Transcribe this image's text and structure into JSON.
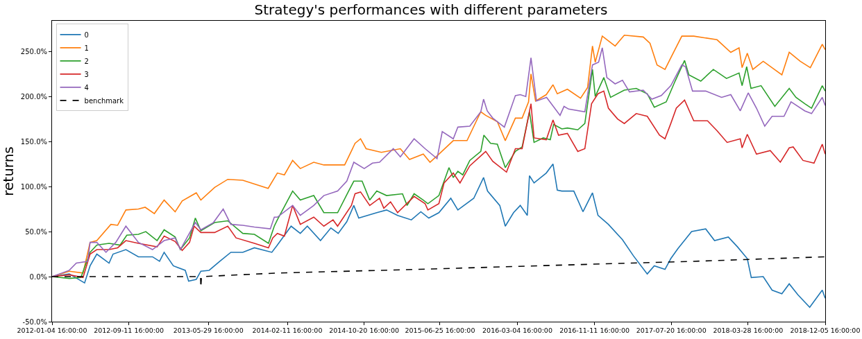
{
  "chart_data": {
    "type": "line",
    "title": "Strategy's performances with different parameters",
    "ylabel": "returns",
    "legend": "top left",
    "xlim": [
      "2012-01-04T16:00",
      "2018-12-05T16:00"
    ],
    "ylim": [
      -50,
      284
    ],
    "xticks": [
      {
        "value": "2012-01-04T16:00",
        "label": "2012-01-04 16:00:00"
      },
      {
        "value": "2012-09-11T16:00",
        "label": "2012-09-11 16:00:00"
      },
      {
        "value": "2013-05-29T16:00",
        "label": "2013-05-29 16:00:00"
      },
      {
        "value": "2014-02-11T16:00",
        "label": "2014-02-11 16:00:00"
      },
      {
        "value": "2014-10-20T16:00",
        "label": "2014-10-20 16:00:00"
      },
      {
        "value": "2015-06-25T16:00",
        "label": "2015-06-25 16:00:00"
      },
      {
        "value": "2016-03-04T16:00",
        "label": "2016-03-04 16:00:00"
      },
      {
        "value": "2016-11-11T16:00",
        "label": "2016-11-11 16:00:00"
      },
      {
        "value": "2017-07-20T16:00",
        "label": "2017-07-20 16:00:00"
      },
      {
        "value": "2018-03-28T16:00",
        "label": "2018-03-28 16:00:00"
      },
      {
        "value": "2018-12-05T16:00",
        "label": "2018-12-05 16:00:00"
      }
    ],
    "yticks": [
      {
        "value": -50,
        "label": "-50.0%"
      },
      {
        "value": 0,
        "label": "0.0%"
      },
      {
        "value": 50,
        "label": "50.0%"
      },
      {
        "value": 100,
        "label": "100.0%"
      },
      {
        "value": 150,
        "label": "150.0%"
      },
      {
        "value": 200,
        "label": "200.0%"
      },
      {
        "value": 250,
        "label": "250.0%"
      }
    ],
    "series": [
      {
        "name": "0",
        "color": "#1f77b4",
        "x": [
          "2012-01-04T16:00",
          "2012-03-01",
          "2012-04-20",
          "2012-05-08",
          "2012-05-30",
          "2012-07-09",
          "2012-07-22",
          "2012-09-02",
          "2012-10-13",
          "2012-11-28",
          "2012-12-21",
          "2013-01-05",
          "2013-02-04",
          "2013-03-15",
          "2013-03-26",
          "2013-04-20",
          "2013-05-05",
          "2013-06-01",
          "2013-07-06",
          "2013-08-11",
          "2013-09-19",
          "2013-10-27",
          "2013-12-23",
          "2014-01-10",
          "2014-02-24",
          "2014-03-26",
          "2014-04-18",
          "2014-05-31",
          "2014-07-04",
          "2014-07-28",
          "2014-08-25",
          "2014-09-17",
          "2014-10-03",
          "2014-12-01",
          "2015-01-02",
          "2015-02-07",
          "2015-03-24",
          "2015-04-24",
          "2015-05-20",
          "2015-06-22",
          "2015-07-31",
          "2015-08-23",
          "2015-10-14",
          "2015-11-15",
          "2015-11-28",
          "2016-01-07",
          "2016-01-25",
          "2016-02-21",
          "2016-03-14",
          "2016-04-06",
          "2016-04-13",
          "2016-04-28",
          "2016-06-07",
          "2016-06-29",
          "2016-07-13",
          "2016-07-28",
          "2016-09-05",
          "2016-10-05",
          "2016-11-05",
          "2016-11-23",
          "2016-12-27",
          "2017-02-11",
          "2017-03-19",
          "2017-05-03",
          "2017-05-26",
          "2017-06-30",
          "2017-07-19",
          "2017-08-11",
          "2017-09-25",
          "2017-11-10",
          "2017-12-09",
          "2018-01-23",
          "2018-02-22",
          "2018-03-26",
          "2018-04-08",
          "2018-05-17",
          "2018-06-15",
          "2018-07-17",
          "2018-08-10",
          "2018-09-07",
          "2018-10-16",
          "2018-11-26",
          "2018-12-05T16:00"
        ],
        "values": [
          0,
          3,
          -7,
          12,
          25,
          15,
          25,
          30,
          22,
          22,
          17,
          27,
          12,
          7,
          -5,
          -3,
          6,
          7,
          17,
          27,
          27,
          32,
          27,
          35,
          56,
          48,
          56,
          40,
          54,
          48,
          61,
          79,
          65,
          71,
          74,
          68,
          63,
          72,
          65,
          71,
          87,
          74,
          87,
          110,
          95,
          79,
          56,
          71,
          79,
          68,
          112,
          104,
          115,
          125,
          96,
          95,
          95,
          72,
          93,
          68,
          58,
          41,
          23,
          3,
          12,
          8,
          20,
          31,
          50,
          53,
          40,
          44,
          33,
          20,
          -1,
          0,
          -15,
          -19,
          -8,
          -20,
          -34,
          -15,
          -24
        ]
      },
      {
        "name": "1",
        "color": "#ff7f0e",
        "x": [
          "2012-01-04T16:00",
          "2012-03-01",
          "2012-04-15",
          "2012-05-08",
          "2012-05-30",
          "2012-07-15",
          "2012-08-06",
          "2012-09-02",
          "2012-10-13",
          "2012-11-04",
          "2012-12-04",
          "2013-01-05",
          "2013-02-10",
          "2013-03-05",
          "2013-04-20",
          "2013-05-05",
          "2013-06-19",
          "2013-08-01",
          "2013-09-19",
          "2013-12-11",
          "2014-01-10",
          "2014-02-02",
          "2014-03-01",
          "2014-03-26",
          "2014-05-09",
          "2014-06-11",
          "2014-08-18",
          "2014-08-31",
          "2014-09-21",
          "2014-10-09",
          "2014-10-27",
          "2014-12-16",
          "2015-02-16",
          "2015-03-18",
          "2015-05-02",
          "2015-05-24",
          "2015-06-22",
          "2015-08-08",
          "2015-09-22",
          "2015-11-06",
          "2015-11-22",
          "2015-12-30",
          "2016-01-25",
          "2016-02-27",
          "2016-03-20",
          "2016-04-10",
          "2016-04-18",
          "2016-05-03",
          "2016-06-07",
          "2016-06-29",
          "2016-07-13",
          "2016-08-15",
          "2016-09-27",
          "2016-10-20",
          "2016-11-05",
          "2016-11-14",
          "2016-12-07",
          "2017-01-18",
          "2017-02-17",
          "2017-04-20",
          "2017-05-12",
          "2017-06-04",
          "2017-06-30",
          "2017-07-19",
          "2017-08-24",
          "2017-10-02",
          "2017-12-17",
          "2018-01-31",
          "2018-02-27",
          "2018-03-09",
          "2018-03-26",
          "2018-04-13",
          "2018-05-17",
          "2018-07-17",
          "2018-08-10",
          "2018-09-15",
          "2018-10-18",
          "2018-11-26",
          "2018-12-05T16:00"
        ],
        "values": [
          0,
          6,
          4,
          38,
          40,
          58,
          57,
          74,
          75,
          77,
          70,
          85,
          72,
          84,
          93,
          85,
          99,
          108,
          107,
          98,
          115,
          113,
          129,
          120,
          127,
          124,
          124,
          133,
          148,
          153,
          142,
          138,
          142,
          130,
          136,
          127,
          136,
          151,
          151,
          183,
          179,
          172,
          151,
          176,
          176,
          194,
          225,
          195,
          202,
          213,
          203,
          208,
          198,
          210,
          256,
          238,
          267,
          256,
          268,
          266,
          259,
          235,
          230,
          243,
          267,
          267,
          263,
          249,
          254,
          232,
          248,
          230,
          239,
          224,
          249,
          239,
          232,
          258,
          252
        ]
      },
      {
        "name": "2",
        "color": "#2ca02c",
        "x": [
          "2012-01-04T16:00",
          "2012-03-01",
          "2012-04-08",
          "2012-05-08",
          "2012-05-30",
          "2012-07-09",
          "2012-08-14",
          "2012-09-05",
          "2012-10-13",
          "2012-11-06",
          "2012-12-13",
          "2013-01-05",
          "2013-02-10",
          "2013-02-27",
          "2013-03-29",
          "2013-04-17",
          "2013-05-05",
          "2013-06-19",
          "2013-08-01",
          "2013-09-19",
          "2013-10-27",
          "2013-12-12",
          "2013-12-31",
          "2014-01-10",
          "2014-03-01",
          "2014-03-26",
          "2014-05-09",
          "2014-06-11",
          "2014-07-26",
          "2014-08-31",
          "2014-09-17",
          "2014-10-14",
          "2014-11-08",
          "2014-12-01",
          "2015-01-02",
          "2015-02-23",
          "2015-03-10",
          "2015-04-02",
          "2015-05-02",
          "2015-05-17",
          "2015-06-22",
          "2015-07-25",
          "2015-08-08",
          "2015-08-23",
          "2015-09-08",
          "2015-10-01",
          "2015-11-06",
          "2015-11-16",
          "2015-12-08",
          "2015-12-30",
          "2016-01-25",
          "2016-02-27",
          "2016-03-20",
          "2016-04-13",
          "2016-04-28",
          "2016-05-28",
          "2016-06-20",
          "2016-07-01",
          "2016-07-28",
          "2016-08-15",
          "2016-09-18",
          "2016-10-11",
          "2016-11-05",
          "2016-11-14",
          "2016-12-12",
          "2017-01-03",
          "2017-02-17",
          "2017-03-28",
          "2017-05-03",
          "2017-05-26",
          "2017-07-04",
          "2017-08-02",
          "2017-09-02",
          "2017-09-16",
          "2017-10-25",
          "2017-12-05",
          "2018-01-17",
          "2018-02-27",
          "2018-03-09",
          "2018-03-24",
          "2018-04-07",
          "2018-05-10",
          "2018-06-24",
          "2018-08-10",
          "2018-09-01",
          "2018-09-30",
          "2018-10-22",
          "2018-11-26",
          "2018-12-05T16:00"
        ],
        "values": [
          0,
          -2,
          -1,
          27,
          35,
          37,
          35,
          46,
          47,
          50,
          40,
          52,
          44,
          30,
          43,
          65,
          51,
          60,
          62,
          48,
          47,
          37,
          56,
          63,
          95,
          85,
          90,
          71,
          71,
          95,
          106,
          106,
          85,
          95,
          90,
          92,
          79,
          92,
          85,
          81,
          90,
          121,
          110,
          117,
          113,
          129,
          139,
          157,
          148,
          147,
          121,
          139,
          144,
          183,
          149,
          154,
          152,
          169,
          164,
          165,
          163,
          170,
          230,
          200,
          221,
          199,
          207,
          209,
          203,
          188,
          194,
          217,
          240,
          224,
          217,
          230,
          220,
          226,
          212,
          233,
          209,
          212,
          189,
          209,
          199,
          192,
          187,
          212,
          206
        ]
      },
      {
        "name": "3",
        "color": "#d62728",
        "x": [
          "2012-01-04T16:00",
          "2012-03-01",
          "2012-04-15",
          "2012-05-08",
          "2012-05-30",
          "2012-07-09",
          "2012-08-06",
          "2012-09-02",
          "2012-10-13",
          "2012-12-13",
          "2013-01-05",
          "2013-02-10",
          "2013-03-05",
          "2013-03-29",
          "2013-04-13",
          "2013-05-05",
          "2013-06-19",
          "2013-08-01",
          "2013-08-28",
          "2013-10-27",
          "2013-12-12",
          "2013-12-26",
          "2014-01-10",
          "2014-02-02",
          "2014-03-01",
          "2014-03-26",
          "2014-05-09",
          "2014-06-11",
          "2014-07-11",
          "2014-07-26",
          "2014-09-09",
          "2014-09-21",
          "2014-10-09",
          "2014-11-08",
          "2014-12-10",
          "2014-12-24",
          "2015-01-15",
          "2015-02-07",
          "2015-04-02",
          "2015-05-08",
          "2015-05-17",
          "2015-06-22",
          "2015-07-09",
          "2015-08-08",
          "2015-08-30",
          "2015-10-01",
          "2015-11-06",
          "2015-11-22",
          "2015-12-15",
          "2016-01-29",
          "2016-02-27",
          "2016-03-20",
          "2016-04-18",
          "2016-04-28",
          "2016-06-07",
          "2016-06-29",
          "2016-07-17",
          "2016-08-15",
          "2016-09-18",
          "2016-10-11",
          "2016-11-02",
          "2016-11-23",
          "2016-12-12",
          "2016-12-27",
          "2017-01-26",
          "2017-02-17",
          "2017-03-28",
          "2017-05-03",
          "2017-06-12",
          "2017-06-30",
          "2017-07-19",
          "2017-08-06",
          "2017-09-02",
          "2017-10-02",
          "2017-11-16",
          "2017-12-17",
          "2018-01-19",
          "2018-03-03",
          "2018-03-09",
          "2018-03-26",
          "2018-04-25",
          "2018-06-09",
          "2018-07-12",
          "2018-08-10",
          "2018-08-23",
          "2018-09-24",
          "2018-10-30",
          "2018-11-26",
          "2018-12-05T16:00"
        ],
        "values": [
          0,
          2,
          -1,
          25,
          30,
          30,
          32,
          40,
          37,
          33,
          45,
          39,
          29,
          38,
          56,
          49,
          49,
          56,
          43,
          37,
          32,
          43,
          48,
          45,
          79,
          58,
          66,
          56,
          63,
          56,
          79,
          92,
          94,
          79,
          87,
          76,
          83,
          71,
          89,
          81,
          74,
          81,
          104,
          115,
          104,
          123,
          134,
          139,
          128,
          116,
          142,
          142,
          192,
          154,
          152,
          174,
          157,
          159,
          139,
          142,
          192,
          203,
          206,
          187,
          175,
          170,
          181,
          178,
          157,
          153,
          170,
          187,
          196,
          173,
          173,
          162,
          149,
          153,
          143,
          158,
          136,
          140,
          127,
          143,
          144,
          129,
          126,
          147,
          136
        ]
      },
      {
        "name": "4",
        "color": "#9467bd",
        "x": [
          "2012-01-04T16:00",
          "2012-03-01",
          "2012-03-24",
          "2012-04-30",
          "2012-05-08",
          "2012-05-30",
          "2012-06-29",
          "2012-07-31",
          "2012-09-02",
          "2012-10-13",
          "2012-11-28",
          "2013-01-05",
          "2013-02-10",
          "2013-02-27",
          "2013-04-17",
          "2013-05-05",
          "2013-06-15",
          "2013-07-17",
          "2013-08-11",
          "2013-09-19",
          "2013-10-27",
          "2013-12-18",
          "2013-12-31",
          "2014-01-10",
          "2014-03-01",
          "2014-03-26",
          "2014-05-09",
          "2014-06-11",
          "2014-07-26",
          "2014-08-25",
          "2014-09-17",
          "2014-10-21",
          "2014-11-17",
          "2014-12-10",
          "2015-01-24",
          "2015-02-16",
          "2015-04-02",
          "2015-05-08",
          "2015-06-16",
          "2015-07-03",
          "2015-08-08",
          "2015-08-23",
          "2015-10-01",
          "2015-11-06",
          "2015-11-15",
          "2015-11-27",
          "2015-12-15",
          "2016-01-22",
          "2016-02-27",
          "2016-03-14",
          "2016-04-01",
          "2016-04-18",
          "2016-05-06",
          "2016-06-08",
          "2016-07-22",
          "2016-08-04",
          "2016-08-19",
          "2016-10-11",
          "2016-11-05",
          "2016-11-25",
          "2016-12-07",
          "2016-12-22",
          "2017-01-18",
          "2017-02-11",
          "2017-03-06",
          "2017-04-20",
          "2017-05-18",
          "2017-06-18",
          "2017-07-19",
          "2017-08-24",
          "2017-09-05",
          "2017-09-28",
          "2017-11-10",
          "2018-01-01",
          "2018-01-31",
          "2018-03-03",
          "2018-03-29",
          "2018-04-25",
          "2018-05-22",
          "2018-06-15",
          "2018-07-24",
          "2018-08-16",
          "2018-09-30",
          "2018-10-22",
          "2018-11-26",
          "2018-12-05T16:00"
        ],
        "values": [
          0,
          7,
          15,
          17,
          38,
          38,
          27,
          38,
          56,
          38,
          30,
          40,
          43,
          30,
          60,
          52,
          60,
          75,
          58,
          57,
          55,
          53,
          66,
          66,
          79,
          68,
          79,
          90,
          95,
          106,
          127,
          120,
          126,
          127,
          142,
          133,
          153,
          142,
          131,
          161,
          153,
          166,
          167,
          183,
          197,
          184,
          176,
          166,
          201,
          202,
          200,
          243,
          195,
          199,
          179,
          189,
          186,
          183,
          235,
          238,
          254,
          221,
          214,
          218,
          205,
          207,
          197,
          201,
          212,
          235,
          233,
          206,
          206,
          199,
          202,
          184,
          204,
          187,
          167,
          178,
          178,
          194,
          184,
          181,
          199,
          190
        ]
      },
      {
        "name": "benchmark",
        "color": "#000000",
        "line_style": "dashed",
        "x": [
          "2012-01-04T16:00",
          "2013-05-04",
          "2013-05-05",
          "2013-05-07",
          "2014-01-10",
          "2015-04-09",
          "2016-08-15",
          "2017-10-02",
          "2018-12-05T16:00"
        ],
        "values": [
          0,
          0,
          -12,
          0,
          4,
          8,
          13,
          17,
          22
        ]
      }
    ]
  }
}
